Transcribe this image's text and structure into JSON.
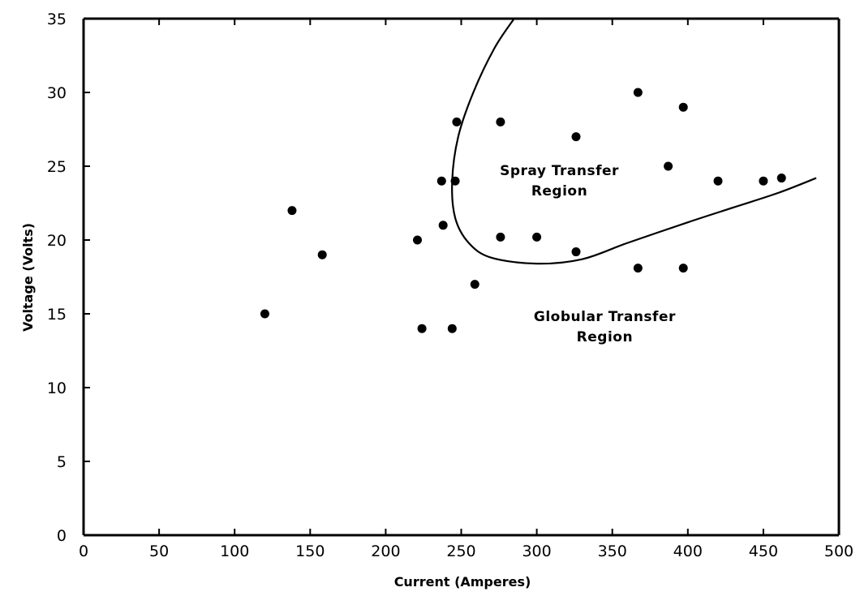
{
  "chart_data": {
    "type": "scatter",
    "xlabel": "Current (Amperes)",
    "ylabel": "Voltage (Volts)",
    "xlim": [
      0,
      500
    ],
    "ylim": [
      0,
      35
    ],
    "x_ticks": [
      "0",
      "50",
      "100",
      "150",
      "200",
      "250",
      "300",
      "350",
      "400",
      "450",
      "500"
    ],
    "y_ticks": [
      "0",
      "5",
      "10",
      "15",
      "20",
      "25",
      "30",
      "35"
    ],
    "grid": false,
    "legend": "none",
    "points": [
      {
        "x": 120,
        "y": 15
      },
      {
        "x": 138,
        "y": 22
      },
      {
        "x": 158,
        "y": 19
      },
      {
        "x": 221,
        "y": 20
      },
      {
        "x": 224,
        "y": 14
      },
      {
        "x": 237,
        "y": 24
      },
      {
        "x": 238,
        "y": 21
      },
      {
        "x": 244,
        "y": 14
      },
      {
        "x": 246,
        "y": 24
      },
      {
        "x": 247,
        "y": 28
      },
      {
        "x": 259,
        "y": 17
      },
      {
        "x": 276,
        "y": 28
      },
      {
        "x": 276,
        "y": 20.2
      },
      {
        "x": 300,
        "y": 20.2
      },
      {
        "x": 326,
        "y": 27
      },
      {
        "x": 326,
        "y": 19.2
      },
      {
        "x": 367,
        "y": 30
      },
      {
        "x": 367,
        "y": 18.1
      },
      {
        "x": 387,
        "y": 25
      },
      {
        "x": 397,
        "y": 29
      },
      {
        "x": 397,
        "y": 18.1
      },
      {
        "x": 420,
        "y": 24
      },
      {
        "x": 450,
        "y": 24
      },
      {
        "x": 462,
        "y": 24.2
      }
    ],
    "boundary_curve": [
      {
        "x": 285,
        "y": 35
      },
      {
        "x": 272,
        "y": 33
      },
      {
        "x": 258,
        "y": 30
      },
      {
        "x": 248,
        "y": 27
      },
      {
        "x": 244,
        "y": 24
      },
      {
        "x": 246,
        "y": 21.5
      },
      {
        "x": 255,
        "y": 19.8
      },
      {
        "x": 270,
        "y": 18.8
      },
      {
        "x": 300,
        "y": 18.4
      },
      {
        "x": 330,
        "y": 18.7
      },
      {
        "x": 360,
        "y": 19.8
      },
      {
        "x": 400,
        "y": 21.2
      },
      {
        "x": 430,
        "y": 22.2
      },
      {
        "x": 460,
        "y": 23.2
      },
      {
        "x": 485,
        "y": 24.2
      }
    ],
    "annotations": [
      {
        "lines": [
          "Spray Transfer",
          "Region"
        ],
        "x": 315,
        "y": 24.4
      },
      {
        "lines": [
          "Globular Transfer",
          "Region"
        ],
        "x": 345,
        "y": 14.5
      }
    ]
  }
}
